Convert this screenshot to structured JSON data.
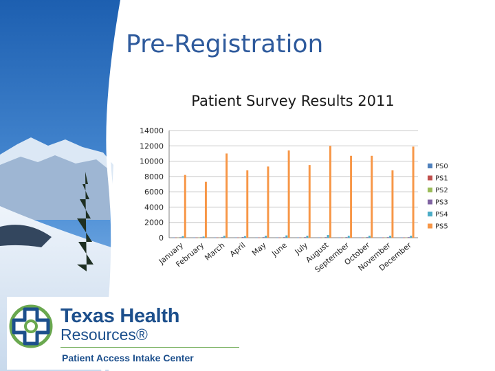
{
  "slide": {
    "title": "Pre-Registration"
  },
  "logo": {
    "name": "Texas Health",
    "sub": "Resources®",
    "tagline": "Patient Access Intake Center"
  },
  "colors": {
    "title": "#2e5a9c",
    "brand_blue": "#1c4f8c",
    "brand_green": "#6aa84f"
  },
  "chart_data": {
    "type": "bar",
    "title": "Patient Survey Results 2011",
    "categories": [
      "January",
      "February",
      "March",
      "April",
      "May",
      "June",
      "July",
      "August",
      "September",
      "October",
      "November",
      "December"
    ],
    "ylim": [
      0,
      14000
    ],
    "yticks": [
      "0",
      "2000",
      "4000",
      "6000",
      "8000",
      "10000",
      "12000",
      "14000"
    ],
    "grid": true,
    "legend_position": "right",
    "series": [
      {
        "name": "PS0",
        "color": "#4f81bd",
        "values": [
          40,
          40,
          40,
          40,
          40,
          40,
          40,
          40,
          40,
          40,
          40,
          40
        ]
      },
      {
        "name": "PS1",
        "color": "#c0504d",
        "values": [
          20,
          20,
          20,
          20,
          20,
          20,
          20,
          20,
          20,
          20,
          20,
          20
        ]
      },
      {
        "name": "PS2",
        "color": "#9bbb59",
        "values": [
          15,
          15,
          15,
          15,
          15,
          15,
          15,
          15,
          15,
          15,
          15,
          15
        ]
      },
      {
        "name": "PS3",
        "color": "#8064a2",
        "values": [
          60,
          60,
          70,
          80,
          70,
          70,
          70,
          70,
          70,
          70,
          70,
          70
        ]
      },
      {
        "name": "PS4",
        "color": "#4bacc6",
        "values": [
          200,
          150,
          250,
          200,
          250,
          300,
          250,
          350,
          250,
          250,
          250,
          250
        ]
      },
      {
        "name": "PS5",
        "color": "#f79646",
        "values": [
          8200,
          7300,
          11000,
          8800,
          9300,
          11400,
          9500,
          12000,
          10700,
          10700,
          8800,
          11900
        ]
      }
    ]
  }
}
